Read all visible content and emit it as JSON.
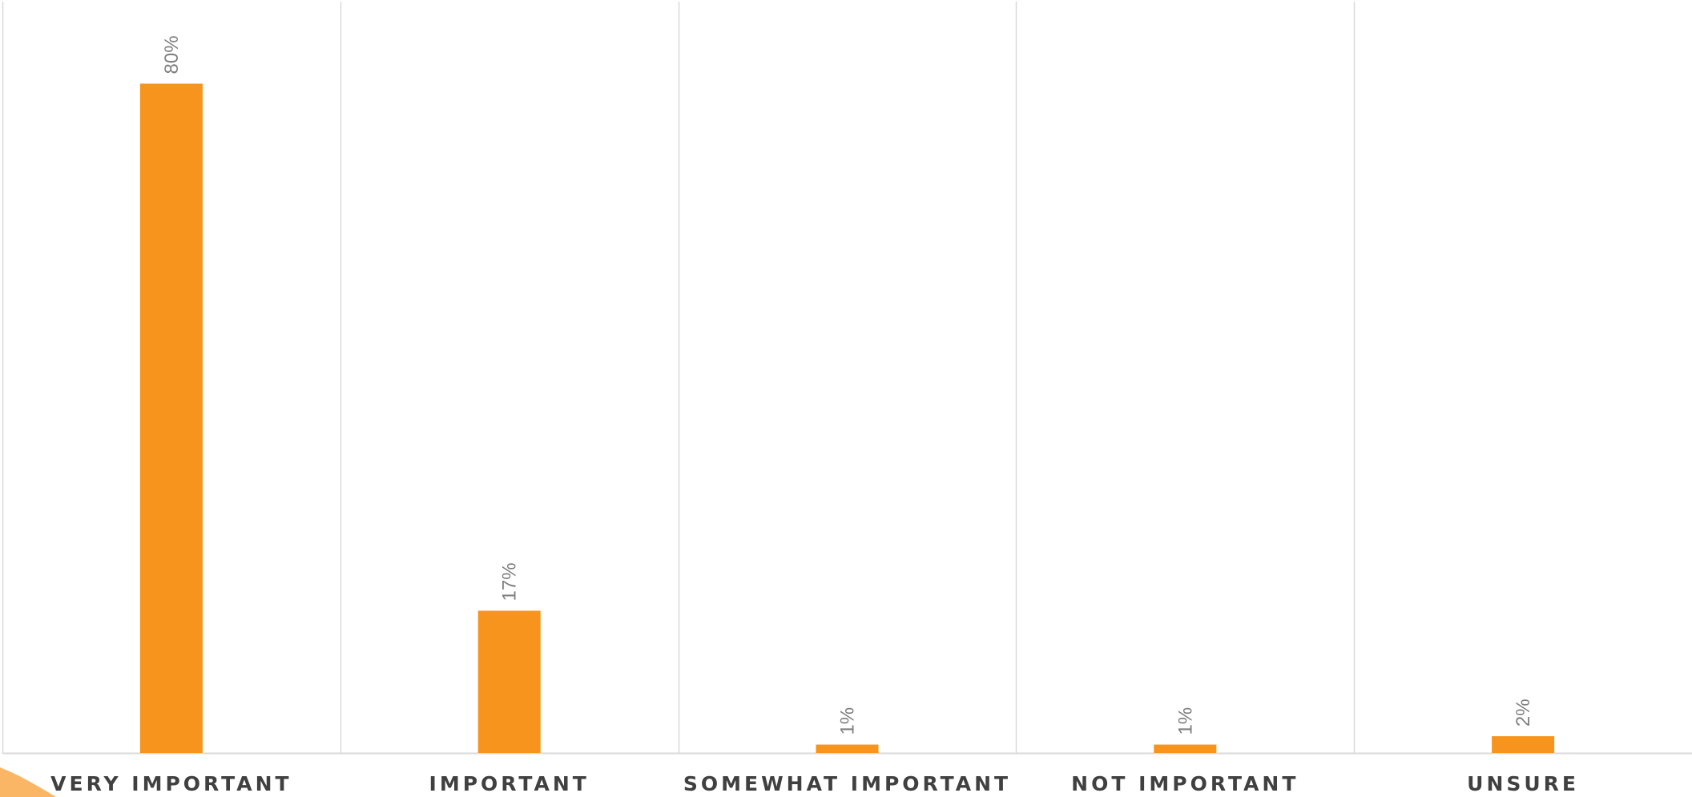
{
  "chart_data": {
    "type": "bar",
    "categories": [
      "VERY IMPORTANT",
      "IMPORTANT",
      "SOMEWHAT IMPORTANT",
      "NOT IMPORTANT",
      "UNSURE"
    ],
    "values": [
      80,
      17,
      1,
      1,
      2
    ],
    "data_labels": [
      "80%",
      "17%",
      "1%",
      "1%",
      "2%"
    ],
    "ylim": [
      0,
      90
    ],
    "grid": "vertical category separators",
    "legend": "none",
    "bar_color": "#F7941D",
    "label_color": "#7F7F7F",
    "category_label_color": "#404040",
    "gridline_color": "#D9D9D9",
    "decoration_color": "#F9A84A"
  }
}
